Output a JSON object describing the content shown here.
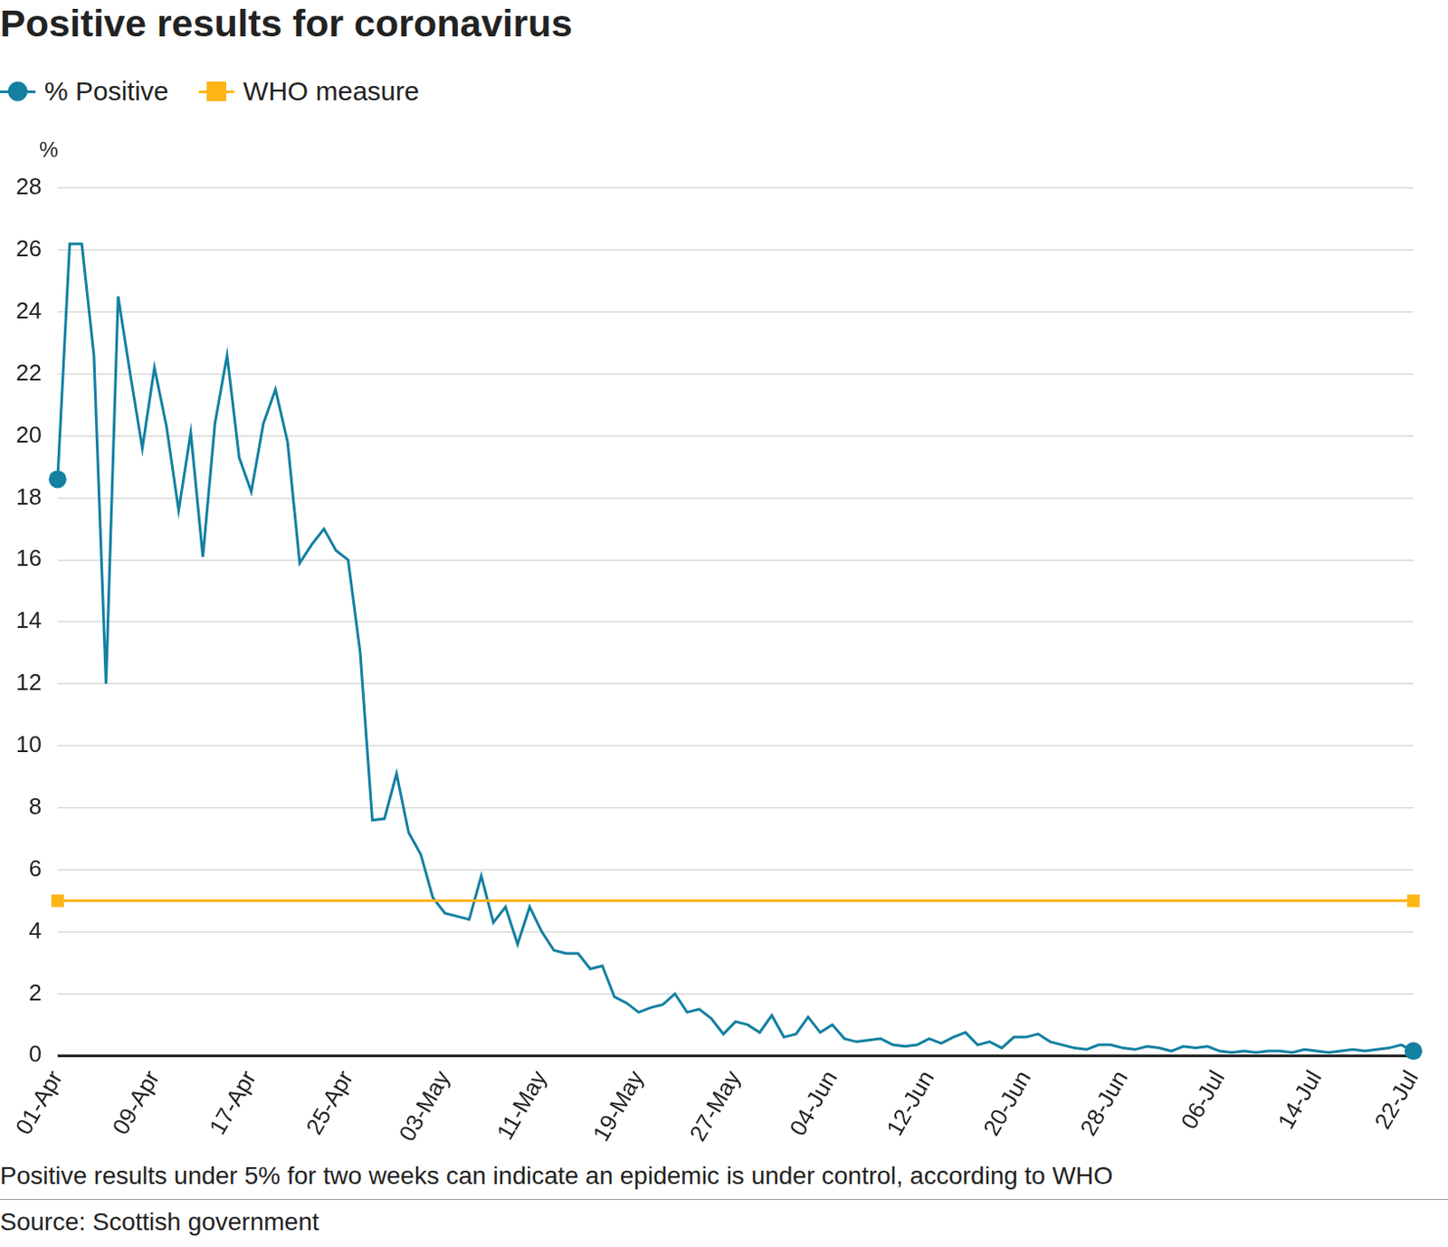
{
  "chart_data": {
    "type": "line",
    "title": "Positive results for coronavirus",
    "y_label": "%",
    "note": "Positive results under 5% for two weeks can indicate an epidemic is under control, according to WHO",
    "source": "Source: Scottish government",
    "legend": "top-left",
    "grid": true,
    "ylim": [
      0,
      28
    ],
    "yticks": [
      0,
      2,
      4,
      6,
      8,
      10,
      12,
      14,
      16,
      18,
      20,
      22,
      24,
      26,
      28
    ],
    "categories": [
      "01-Apr",
      null,
      null,
      null,
      null,
      null,
      null,
      null,
      "09-Apr",
      null,
      null,
      null,
      null,
      null,
      null,
      null,
      "17-Apr",
      null,
      null,
      null,
      null,
      null,
      null,
      null,
      "25-Apr",
      null,
      null,
      null,
      null,
      null,
      null,
      null,
      "03-May",
      null,
      null,
      null,
      null,
      null,
      null,
      null,
      "11-May",
      null,
      null,
      null,
      null,
      null,
      null,
      null,
      "19-May",
      null,
      null,
      null,
      null,
      null,
      null,
      null,
      "27-May",
      null,
      null,
      null,
      null,
      null,
      null,
      null,
      "04-Jun",
      null,
      null,
      null,
      null,
      null,
      null,
      null,
      "12-Jun",
      null,
      null,
      null,
      null,
      null,
      null,
      null,
      "20-Jun",
      null,
      null,
      null,
      null,
      null,
      null,
      null,
      "28-Jun",
      null,
      null,
      null,
      null,
      null,
      null,
      null,
      "06-Jul",
      null,
      null,
      null,
      null,
      null,
      null,
      null,
      "14-Jul",
      null,
      null,
      null,
      null,
      null,
      null,
      null,
      "22-Jul"
    ],
    "series": [
      {
        "name": "% Positive",
        "color": "#1380a1",
        "marker": "circle",
        "values": [
          18.6,
          26.2,
          26.2,
          22.6,
          12.0,
          24.5,
          22.0,
          19.6,
          22.2,
          20.3,
          17.6,
          20.1,
          16.1,
          20.4,
          22.6,
          19.3,
          18.2,
          20.4,
          21.5,
          19.8,
          15.9,
          16.5,
          17.0,
          16.3,
          16.0,
          13.0,
          7.6,
          7.65,
          9.1,
          7.2,
          6.5,
          5.1,
          4.6,
          4.5,
          4.4,
          5.8,
          4.3,
          4.8,
          3.6,
          4.8,
          4.0,
          3.4,
          3.3,
          3.3,
          2.8,
          2.9,
          1.9,
          1.7,
          1.4,
          1.55,
          1.65,
          2.0,
          1.4,
          1.5,
          1.2,
          0.7,
          1.1,
          1.0,
          0.75,
          1.3,
          0.6,
          0.7,
          1.25,
          0.75,
          1.0,
          0.55,
          0.45,
          0.5,
          0.55,
          0.35,
          0.3,
          0.35,
          0.55,
          0.4,
          0.6,
          0.75,
          0.35,
          0.45,
          0.25,
          0.6,
          0.6,
          0.7,
          0.45,
          0.35,
          0.25,
          0.2,
          0.35,
          0.35,
          0.25,
          0.2,
          0.3,
          0.25,
          0.15,
          0.3,
          0.25,
          0.3,
          0.15,
          0.1,
          0.15,
          0.1,
          0.15,
          0.15,
          0.1,
          0.2,
          0.15,
          0.1,
          0.15,
          0.2,
          0.15,
          0.2,
          0.25,
          0.35,
          0.15
        ]
      },
      {
        "name": "WHO measure",
        "color": "#fdb515",
        "marker": "square",
        "values": [
          5,
          5,
          5,
          5,
          5,
          5,
          5,
          5,
          5,
          5,
          5,
          5,
          5,
          5,
          5,
          5,
          5,
          5,
          5,
          5,
          5,
          5,
          5,
          5,
          5,
          5,
          5,
          5,
          5,
          5,
          5,
          5,
          5,
          5,
          5,
          5,
          5,
          5,
          5,
          5,
          5,
          5,
          5,
          5,
          5,
          5,
          5,
          5,
          5,
          5,
          5,
          5,
          5,
          5,
          5,
          5,
          5,
          5,
          5,
          5,
          5,
          5,
          5,
          5,
          5,
          5,
          5,
          5,
          5,
          5,
          5,
          5,
          5,
          5,
          5,
          5,
          5,
          5,
          5,
          5,
          5,
          5,
          5,
          5,
          5,
          5,
          5,
          5,
          5,
          5,
          5,
          5,
          5,
          5,
          5,
          5,
          5,
          5,
          5,
          5,
          5,
          5,
          5,
          5,
          5,
          5,
          5,
          5,
          5,
          5,
          5,
          5,
          5
        ]
      }
    ]
  }
}
